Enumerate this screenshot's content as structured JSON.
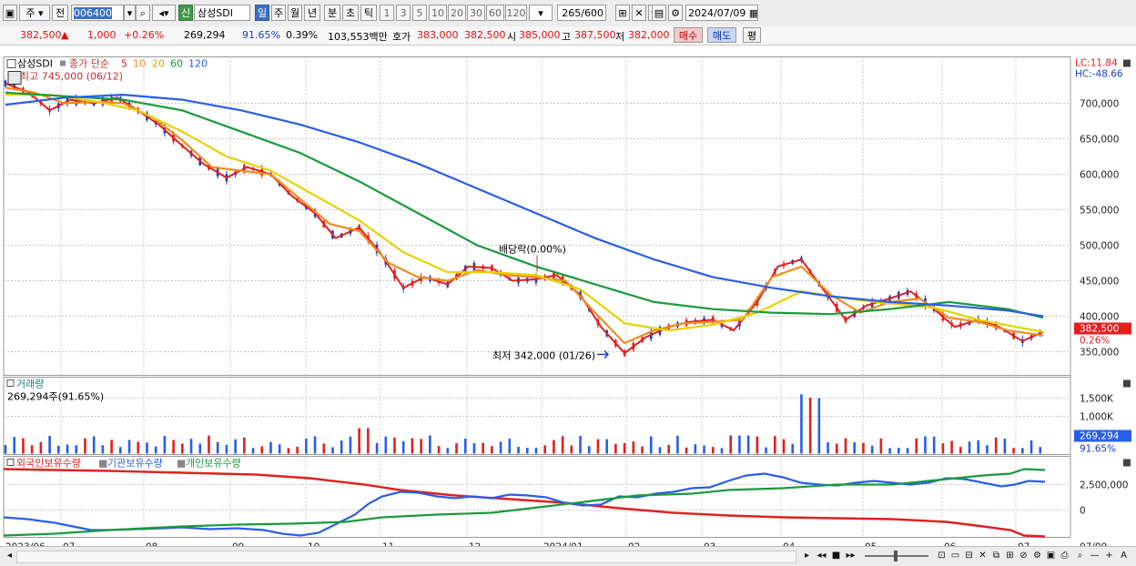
{
  "toolbar": {
    "period_type": "주",
    "prev_label": "전",
    "stock_code": "006400",
    "market_badge": "신",
    "stock_name": "삼성SDI",
    "periods": [
      "일",
      "주",
      "월",
      "년",
      "분",
      "초",
      "틱"
    ],
    "selected_period": "일",
    "intervals": [
      "1",
      "3",
      "5",
      "10",
      "20",
      "30",
      "60",
      "120"
    ],
    "count_value": "265",
    "count_total": "/600",
    "date_value": "2024/07/09"
  },
  "info": {
    "price": "382,500",
    "change": "1,000",
    "change_rate": "+0.26%",
    "volume": "269,294",
    "volume_ratio": "91.65%",
    "turnover": "0.39%",
    "amount": "103,553백만",
    "quote_label": "호가",
    "ask": "383,000",
    "bid": "382,500",
    "open_label": "시",
    "open": "385,000",
    "high_label": "고",
    "high": "387,500",
    "low_label": "저",
    "low": "382,000",
    "buy_label": "매수",
    "sell_label": "매도",
    "avg_label": "평"
  },
  "price_panel": {
    "name": "삼성SDI",
    "legend_main": "종가 단순",
    "legend_ma": [
      {
        "label": "5",
        "color": "#e02020"
      },
      {
        "label": "10",
        "color": "#f08c1c"
      },
      {
        "label": "20",
        "color": "#e6d200"
      },
      {
        "label": "60",
        "color": "#1a9a3c"
      },
      {
        "label": "120",
        "color": "#2a5ee8"
      }
    ],
    "max_note": "최고 745,000 (06/12)",
    "min_note": "최저 342,000 (01/26)",
    "dividend_note": "배당락(0.00%)",
    "lc": "LC:11.84",
    "hc": "HC:-48.66",
    "last_price": "382,500",
    "last_change": "0.26%",
    "y_ticks": [
      "700,000",
      "650,000",
      "600,000",
      "550,000",
      "500,000",
      "450,000",
      "400,000",
      "350,000"
    ]
  },
  "volume_panel": {
    "title": "거래량",
    "value_note": "269,294주(91.65%)",
    "y_ticks": [
      "1,500K",
      "1,000K"
    ],
    "last_value": "269,294",
    "last_ratio": "91.65%"
  },
  "holding_panel": {
    "legend": [
      {
        "label": "외국인보유수량",
        "color": "#e02020"
      },
      {
        "label": "기관보유수량",
        "color": "#2a5ee8"
      },
      {
        "label": "개인보유수량",
        "color": "#1a9a3c"
      }
    ],
    "y_ticks": [
      "2,500,000",
      "0"
    ]
  },
  "x_labels": [
    "2023/06",
    "07",
    "08",
    "09",
    "10",
    "11",
    "12",
    "2024/01",
    "02",
    "03",
    "04",
    "05",
    "06",
    "07",
    "07/09"
  ],
  "chart_data": {
    "type": "candlestick",
    "ylim": [
      330000,
      760000
    ],
    "series": [
      {
        "name": "5",
        "points": [
          [
            0,
            728
          ],
          [
            8,
            715
          ],
          [
            15,
            690
          ],
          [
            22,
            705
          ],
          [
            30,
            700
          ],
          [
            38,
            708
          ],
          [
            45,
            690
          ],
          [
            52,
            670
          ],
          [
            60,
            640
          ],
          [
            67,
            615
          ],
          [
            75,
            595
          ],
          [
            82,
            610
          ],
          [
            90,
            600
          ],
          [
            97,
            570
          ],
          [
            105,
            545
          ],
          [
            112,
            510
          ],
          [
            120,
            525
          ],
          [
            127,
            490
          ],
          [
            135,
            440
          ],
          [
            142,
            455
          ],
          [
            150,
            445
          ],
          [
            157,
            470
          ],
          [
            165,
            468
          ],
          [
            172,
            450
          ],
          [
            180,
            452
          ],
          [
            187,
            458
          ],
          [
            195,
            430
          ],
          [
            202,
            385
          ],
          [
            210,
            348
          ],
          [
            217,
            370
          ],
          [
            225,
            385
          ],
          [
            232,
            392
          ],
          [
            240,
            395
          ],
          [
            247,
            380
          ],
          [
            255,
            420
          ],
          [
            262,
            470
          ],
          [
            270,
            480
          ],
          [
            277,
            440
          ],
          [
            285,
            395
          ],
          [
            292,
            415
          ],
          [
            300,
            425
          ],
          [
            307,
            435
          ],
          [
            315,
            410
          ],
          [
            322,
            385
          ],
          [
            330,
            395
          ],
          [
            337,
            385
          ],
          [
            345,
            365
          ],
          [
            352,
            378
          ]
        ]
      },
      {
        "name": "10",
        "points": [
          [
            0,
            722
          ],
          [
            10,
            715
          ],
          [
            20,
            700
          ],
          [
            30,
            702
          ],
          [
            40,
            700
          ],
          [
            50,
            680
          ],
          [
            60,
            648
          ],
          [
            70,
            610
          ],
          [
            80,
            605
          ],
          [
            90,
            600
          ],
          [
            100,
            565
          ],
          [
            110,
            530
          ],
          [
            120,
            520
          ],
          [
            130,
            475
          ],
          [
            140,
            455
          ],
          [
            150,
            450
          ],
          [
            160,
            465
          ],
          [
            170,
            458
          ],
          [
            180,
            455
          ],
          [
            190,
            450
          ],
          [
            200,
            405
          ],
          [
            210,
            362
          ],
          [
            220,
            380
          ],
          [
            230,
            390
          ],
          [
            240,
            392
          ],
          [
            250,
            395
          ],
          [
            260,
            455
          ],
          [
            270,
            470
          ],
          [
            280,
            430
          ],
          [
            290,
            405
          ],
          [
            300,
            420
          ],
          [
            310,
            425
          ],
          [
            320,
            398
          ],
          [
            330,
            392
          ],
          [
            340,
            380
          ],
          [
            352,
            373
          ]
        ]
      },
      {
        "name": "20",
        "points": [
          [
            0,
            712
          ],
          [
            15,
            712
          ],
          [
            30,
            703
          ],
          [
            45,
            690
          ],
          [
            60,
            660
          ],
          [
            75,
            625
          ],
          [
            90,
            605
          ],
          [
            105,
            570
          ],
          [
            120,
            535
          ],
          [
            135,
            490
          ],
          [
            150,
            462
          ],
          [
            165,
            462
          ],
          [
            180,
            458
          ],
          [
            195,
            438
          ],
          [
            210,
            390
          ],
          [
            225,
            380
          ],
          [
            240,
            388
          ],
          [
            255,
            405
          ],
          [
            270,
            435
          ],
          [
            285,
            425
          ],
          [
            300,
            418
          ],
          [
            315,
            412
          ],
          [
            330,
            395
          ],
          [
            352,
            378
          ]
        ]
      },
      {
        "name": "60",
        "points": [
          [
            0,
            715
          ],
          [
            20,
            710
          ],
          [
            40,
            705
          ],
          [
            60,
            690
          ],
          [
            80,
            660
          ],
          [
            100,
            630
          ],
          [
            120,
            590
          ],
          [
            140,
            545
          ],
          [
            160,
            500
          ],
          [
            180,
            470
          ],
          [
            200,
            445
          ],
          [
            220,
            420
          ],
          [
            240,
            410
          ],
          [
            260,
            405
          ],
          [
            280,
            403
          ],
          [
            300,
            410
          ],
          [
            320,
            420
          ],
          [
            340,
            410
          ],
          [
            352,
            398
          ]
        ]
      },
      {
        "name": "120",
        "points": [
          [
            0,
            698
          ],
          [
            20,
            708
          ],
          [
            40,
            712
          ],
          [
            60,
            705
          ],
          [
            80,
            690
          ],
          [
            100,
            670
          ],
          [
            120,
            645
          ],
          [
            140,
            615
          ],
          [
            160,
            580
          ],
          [
            180,
            545
          ],
          [
            200,
            510
          ],
          [
            220,
            480
          ],
          [
            240,
            455
          ],
          [
            260,
            440
          ],
          [
            280,
            428
          ],
          [
            300,
            420
          ],
          [
            320,
            415
          ],
          [
            340,
            408
          ],
          [
            352,
            400
          ]
        ]
      }
    ]
  }
}
